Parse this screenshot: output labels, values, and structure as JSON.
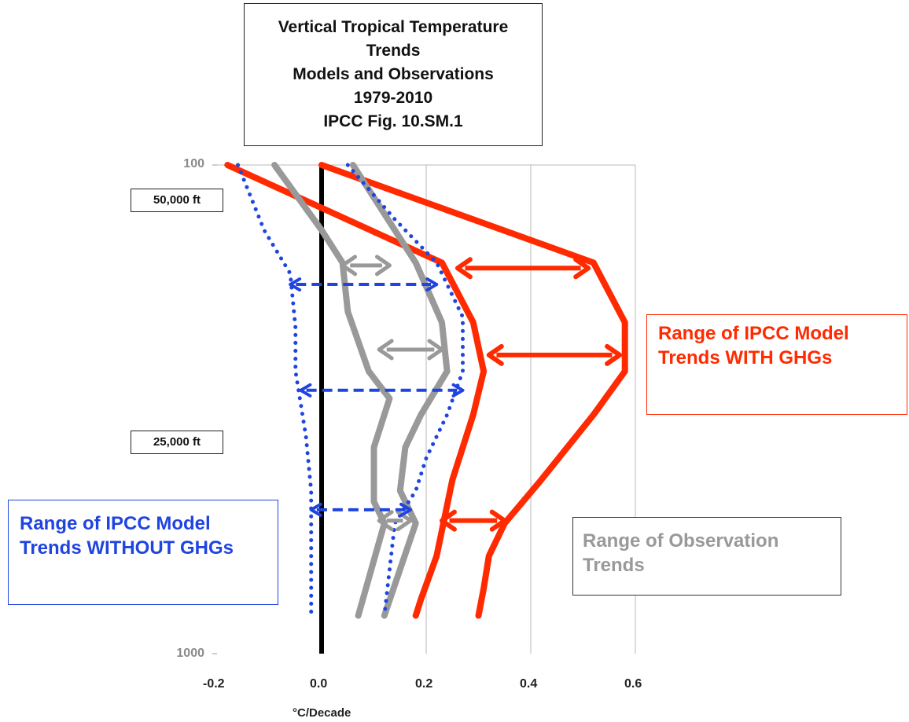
{
  "chart_data": {
    "type": "line",
    "title_lines": [
      "Vertical Tropical Temperature",
      "Trends",
      "Models and Observations",
      "1979-2010",
      "IPCC Fig. 10.SM.1"
    ],
    "xlabel": "°C/Decade",
    "x_ticks": [
      "-0.2",
      "0.0",
      "0.2",
      "0.4",
      "0.6"
    ],
    "y_ticks": [
      "100",
      "1000"
    ],
    "xlim": [
      -0.2,
      0.6
    ],
    "ylim": [
      1000,
      100
    ],
    "altitude_labels": [
      "50,000 ft",
      "25,000 ft"
    ],
    "series": [
      {
        "color": "#ff2a00",
        "style": "solid",
        "points": [
          [
            -0.18,
            100
          ],
          [
            0.23,
            280
          ],
          [
            0.29,
            390
          ],
          [
            0.31,
            480
          ],
          [
            0.29,
            560
          ],
          [
            0.25,
            680
          ],
          [
            0.22,
            820
          ],
          [
            0.19,
            900
          ],
          [
            0.18,
            930
          ]
        ]
      },
      {
        "color": "#ff2a00",
        "style": "solid",
        "points": [
          [
            0.0,
            100
          ],
          [
            0.52,
            280
          ],
          [
            0.58,
            390
          ],
          [
            0.58,
            480
          ],
          [
            0.52,
            560
          ],
          [
            0.42,
            680
          ],
          [
            0.35,
            760
          ],
          [
            0.32,
            820
          ],
          [
            0.31,
            880
          ],
          [
            0.3,
            930
          ]
        ]
      },
      {
        "color": "#999999",
        "style": "solid",
        "points": [
          [
            -0.09,
            100
          ],
          [
            0.0,
            220
          ],
          [
            0.04,
            280
          ],
          [
            0.05,
            370
          ],
          [
            0.09,
            480
          ],
          [
            0.13,
            530
          ],
          [
            0.1,
            620
          ],
          [
            0.1,
            720
          ],
          [
            0.12,
            760
          ],
          [
            0.07,
            930
          ]
        ]
      },
      {
        "color": "#999999",
        "style": "solid",
        "points": [
          [
            0.06,
            100
          ],
          [
            0.14,
            220
          ],
          [
            0.18,
            280
          ],
          [
            0.23,
            390
          ],
          [
            0.24,
            480
          ],
          [
            0.19,
            560
          ],
          [
            0.16,
            620
          ],
          [
            0.15,
            700
          ],
          [
            0.18,
            760
          ],
          [
            0.12,
            930
          ]
        ]
      },
      {
        "color": "#1f44e0",
        "style": "dotted",
        "points": [
          [
            -0.16,
            100
          ],
          [
            -0.11,
            220
          ],
          [
            -0.06,
            300
          ],
          [
            -0.05,
            400
          ],
          [
            -0.05,
            480
          ],
          [
            -0.03,
            600
          ],
          [
            -0.02,
            700
          ],
          [
            -0.02,
            800
          ],
          [
            -0.02,
            930
          ]
        ]
      },
      {
        "color": "#1f44e0",
        "style": "dotted",
        "points": [
          [
            0.05,
            100
          ],
          [
            0.14,
            200
          ],
          [
            0.22,
            280
          ],
          [
            0.27,
            380
          ],
          [
            0.27,
            480
          ],
          [
            0.24,
            560
          ],
          [
            0.2,
            640
          ],
          [
            0.18,
            700
          ],
          [
            0.14,
            760
          ],
          [
            0.12,
            930
          ]
        ]
      }
    ],
    "range_arrows": [
      {
        "color": "#ff2a00",
        "style": "solid",
        "y": 290,
        "x1": 0.26,
        "x2": 0.51
      },
      {
        "color": "#ff2a00",
        "style": "solid",
        "y": 450,
        "x1": 0.32,
        "x2": 0.57
      },
      {
        "color": "#ff2a00",
        "style": "solid",
        "y": 755,
        "x1": 0.23,
        "x2": 0.35
      },
      {
        "color": "#999999",
        "style": "solid",
        "y": 285,
        "x1": 0.04,
        "x2": 0.13
      },
      {
        "color": "#999999",
        "style": "solid",
        "y": 440,
        "x1": 0.11,
        "x2": 0.23
      },
      {
        "color": "#999999",
        "style": "solid",
        "y": 755,
        "x1": 0.11,
        "x2": 0.17
      },
      {
        "color": "#1f44e0",
        "style": "dashed",
        "y": 320,
        "x1": -0.06,
        "x2": 0.22
      },
      {
        "color": "#1f44e0",
        "style": "dashed",
        "y": 515,
        "x1": -0.04,
        "x2": 0.27
      },
      {
        "color": "#1f44e0",
        "style": "dashed",
        "y": 735,
        "x1": -0.02,
        "x2": 0.17
      }
    ],
    "legend": [
      {
        "text_lines": [
          "Range of IPCC Model",
          "Trends WITH GHGs"
        ],
        "color": "#ff2a00",
        "arrow_style": "solid"
      },
      {
        "text_lines": [
          "Range of IPCC Model",
          "Trends WITHOUT GHGs"
        ],
        "color": "#1f44e0",
        "arrow_style": "dashed"
      },
      {
        "text_lines": [
          "Range of Observation",
          "Trends"
        ],
        "color": "#999999",
        "arrow_style": "solid"
      }
    ]
  }
}
